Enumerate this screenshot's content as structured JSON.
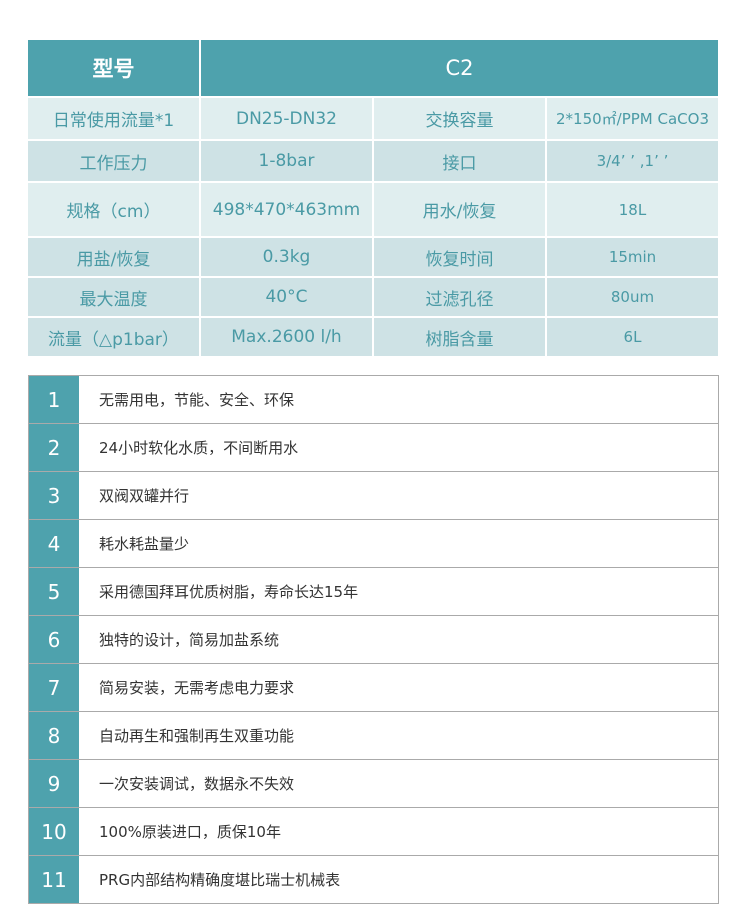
{
  "spec_table": {
    "header": {
      "label": "型号",
      "value": "C2"
    },
    "rows": [
      {
        "k1": "日常使用流量*1",
        "v1": "DN25-DN32",
        "k2": "交换容量",
        "v2": "2*150㎡/PPM CaCO3",
        "h": 41,
        "shade": "l"
      },
      {
        "k1": "工作压力",
        "v1": "1-8bar",
        "k2": "接口",
        "v2": "3/4’ ’ ,1’ ’",
        "h": 40,
        "shade": "d"
      },
      {
        "k1": "规格（cm）",
        "v1": "498*470*463mm",
        "k2": "用水/恢复",
        "v2": "18L",
        "h": 53,
        "shade": "l"
      },
      {
        "k1": "用盐/恢复",
        "v1": "0.3kg",
        "k2": "恢复时间",
        "v2": "15min",
        "h": 38,
        "shade": "d"
      },
      {
        "k1": "最大温度",
        "v1": "40°C",
        "k2": "过滤孔径",
        "v2": "80um",
        "h": 38,
        "shade": "d"
      },
      {
        "k1": "流量（△p1bar）",
        "v1": "Max.2600 l/h",
        "k2": "树脂含量",
        "v2": "6L",
        "h": 38,
        "shade": "d"
      }
    ]
  },
  "features": [
    {
      "n": "1",
      "t": "无需用电，节能、安全、环保"
    },
    {
      "n": "2",
      "t": "24小时软化水质，不间断用水"
    },
    {
      "n": "3",
      "t": "双阀双罐并行"
    },
    {
      "n": "4",
      "t": "耗水耗盐量少"
    },
    {
      "n": "5",
      "t": "采用德国拜耳优质树脂，寿命长达15年"
    },
    {
      "n": "6",
      "t": "独特的设计，简易加盐系统"
    },
    {
      "n": "7",
      "t": "简易安装，无需考虑电力要求"
    },
    {
      "n": "8",
      "t": "自动再生和强制再生双重功能"
    },
    {
      "n": "9",
      "t": "一次安装调试，数据永不失效"
    },
    {
      "n": "10",
      "t": "100%原装进口，质保10年"
    },
    {
      "n": "11",
      "t": "PRG内部结构精确度堪比瑞士机械表"
    }
  ],
  "colors": {
    "accent": "#4ea2ad",
    "cell_light": "#e0eeef",
    "cell_dark": "#cee2e5"
  }
}
